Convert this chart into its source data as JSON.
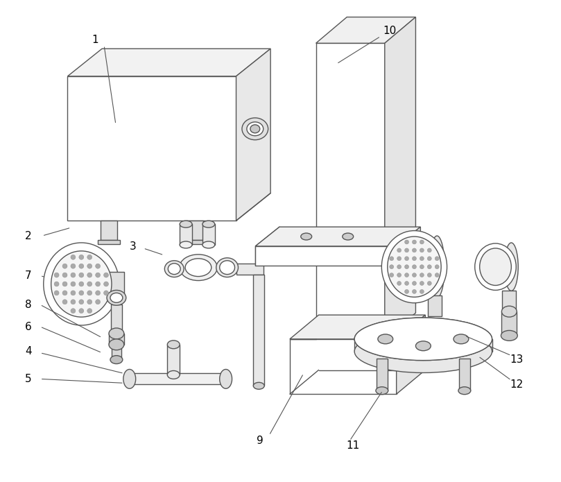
{
  "background_color": "#ffffff",
  "line_color": "#555555",
  "line_width": 1.0,
  "figsize": [
    8.09,
    6.95
  ],
  "dpi": 100
}
